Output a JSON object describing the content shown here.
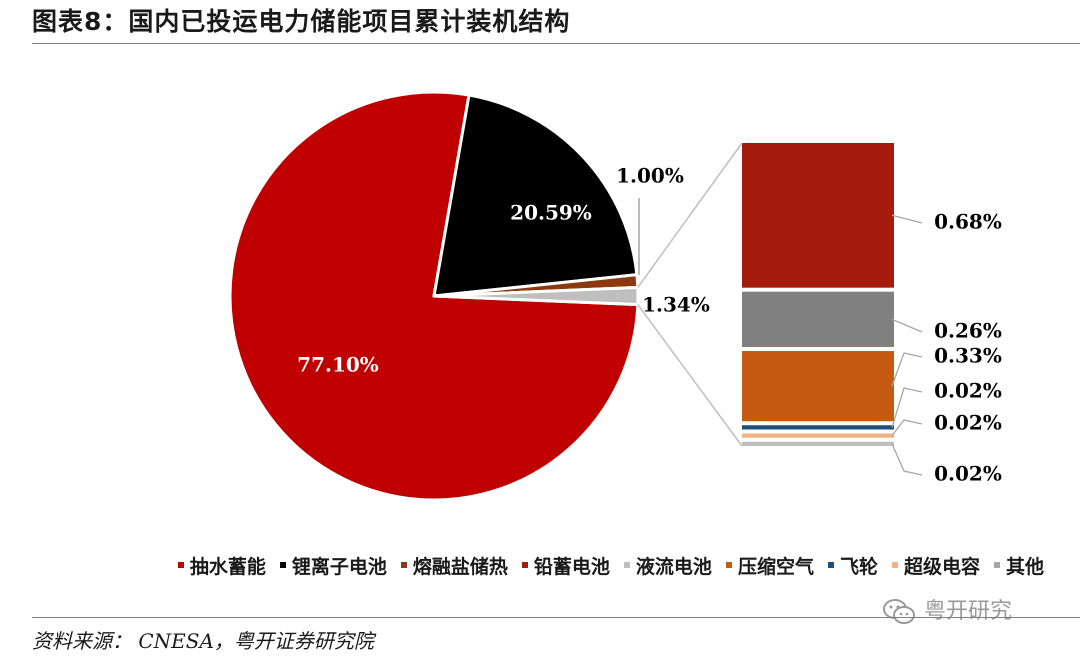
{
  "title": "图表8：国内已投运电力储能项目累计装机结构",
  "source": "资料来源：  CNESA，粤开证券研究院",
  "watermark": "粤开研究",
  "chart_data": {
    "type": "pie",
    "title": "图表8：国内已投运电力储能项目累计装机结构",
    "slices": [
      {
        "name": "抽水蓄能",
        "value": 77.1,
        "label": "77.10%",
        "color": "#c00000"
      },
      {
        "name": "锂离子电池",
        "value": 20.59,
        "label": "20.59%",
        "color": "#000000"
      },
      {
        "name": "熔融盐储热",
        "value": 1.0,
        "label": "1.00%",
        "color": "#8b3a10"
      },
      {
        "name": "其他",
        "value": 1.34,
        "label": "1.34%",
        "color": "#bfbfbf"
      }
    ],
    "breakdown": [
      {
        "name": "铅蓄电池",
        "value": 0.68,
        "label": "0.68%",
        "color": "#a51c0f"
      },
      {
        "name": "液流电池",
        "value": 0.26,
        "label": "0.26%",
        "color": "#808080"
      },
      {
        "name": "压缩空气",
        "value": 0.33,
        "label": "0.33%",
        "color": "#c55a11"
      },
      {
        "name": "飞轮",
        "value": 0.02,
        "label": "0.02%",
        "color": "#1f4e79"
      },
      {
        "name": "超级电容",
        "value": 0.02,
        "label": "0.02%",
        "color": "#f4b183"
      },
      {
        "name": "其他",
        "value": 0.02,
        "label": "0.02%",
        "color": "#bfbfbf"
      }
    ],
    "legend": {
      "placement": "bottom",
      "items": [
        {
          "name": "抽水蓄能",
          "color": "#c00000"
        },
        {
          "name": "锂离子电池",
          "color": "#000000"
        },
        {
          "name": "熔融盐储热",
          "color": "#8b3a10"
        },
        {
          "name": "铅蓄电池",
          "color": "#a51c0f"
        },
        {
          "name": "液流电池",
          "color": "#bfbfbf"
        },
        {
          "name": "压缩空气",
          "color": "#c55a11"
        },
        {
          "name": "飞轮",
          "color": "#1f4e79"
        },
        {
          "name": "超级电容",
          "color": "#f4b183"
        },
        {
          "name": "其他",
          "color": "#a6a6a6"
        }
      ]
    }
  }
}
